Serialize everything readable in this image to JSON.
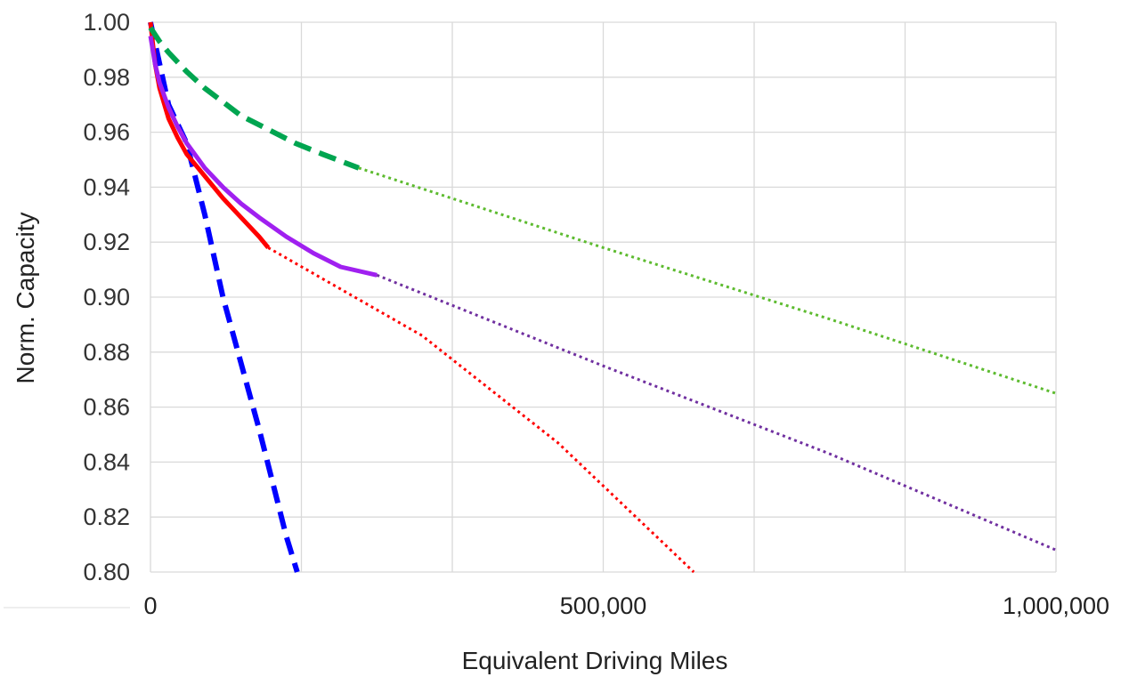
{
  "chart_data": {
    "type": "line",
    "title": "",
    "xlabel": "Equivalent Driving Miles",
    "ylabel": "Norm. Capacity",
    "xlim": [
      0,
      1000000
    ],
    "ylim": [
      0.8,
      1.0
    ],
    "x_ticks": [
      0,
      500000,
      1000000
    ],
    "x_tick_labels": [
      "0",
      "500,000",
      "1,000,000"
    ],
    "y_ticks": [
      0.8,
      0.82,
      0.84,
      0.86,
      0.88,
      0.9,
      0.92,
      0.94,
      0.96,
      0.98,
      1.0
    ],
    "y_tick_labels": [
      "0.80",
      "0.82",
      "0.84",
      "0.86",
      "0.88",
      "0.90",
      "0.92",
      "0.94",
      "0.96",
      "0.98",
      "1.00"
    ],
    "x_gridlines": [
      0,
      166667,
      333333,
      500000,
      666667,
      833333,
      1000000
    ],
    "grid": true,
    "legend": "none",
    "series": [
      {
        "color": "#0000ff",
        "style": "dashed",
        "x": [
          0,
          20000,
          40000,
          60000,
          80000,
          100000,
          120000,
          140000,
          150000,
          162000
        ],
        "y": [
          1.0,
          0.97,
          0.956,
          0.93,
          0.9,
          0.876,
          0.852,
          0.826,
          0.813,
          0.8
        ]
      },
      {
        "color": "#ff0000",
        "style": "solid",
        "x": [
          0,
          5000,
          10000,
          20000,
          30000,
          40000,
          60000,
          80000,
          100000,
          120000,
          130000
        ],
        "y": [
          1.0,
          0.985,
          0.976,
          0.965,
          0.958,
          0.952,
          0.944,
          0.936,
          0.929,
          0.922,
          0.918
        ]
      },
      {
        "color": "#ff0000",
        "style": "dotted",
        "x": [
          130000,
          300000,
          450000,
          600000
        ],
        "y": [
          0.918,
          0.886,
          0.847,
          0.8
        ]
      },
      {
        "color": "#a020f0",
        "style": "solid",
        "x": [
          0,
          5000,
          10000,
          20000,
          30000,
          40000,
          60000,
          80000,
          100000,
          120000,
          150000,
          180000,
          210000,
          250000
        ],
        "y": [
          0.995,
          0.985,
          0.978,
          0.969,
          0.962,
          0.956,
          0.947,
          0.94,
          0.934,
          0.929,
          0.922,
          0.916,
          0.911,
          0.908
        ]
      },
      {
        "color": "#7030a0",
        "style": "dotted",
        "x": [
          250000,
          500000,
          750000,
          1000000
        ],
        "y": [
          0.908,
          0.875,
          0.843,
          0.808
        ]
      },
      {
        "color": "#00a550",
        "style": "dashed",
        "x": [
          0,
          10000,
          20000,
          40000,
          60000,
          80000,
          100000,
          130000,
          160000,
          190000,
          230000
        ],
        "y": [
          0.998,
          0.993,
          0.989,
          0.982,
          0.976,
          0.971,
          0.966,
          0.961,
          0.956,
          0.952,
          0.947
        ]
      },
      {
        "color": "#5dbb2f",
        "style": "dotted",
        "x": [
          230000,
          500000,
          750000,
          1000000
        ],
        "y": [
          0.947,
          0.918,
          0.892,
          0.865
        ]
      }
    ]
  }
}
